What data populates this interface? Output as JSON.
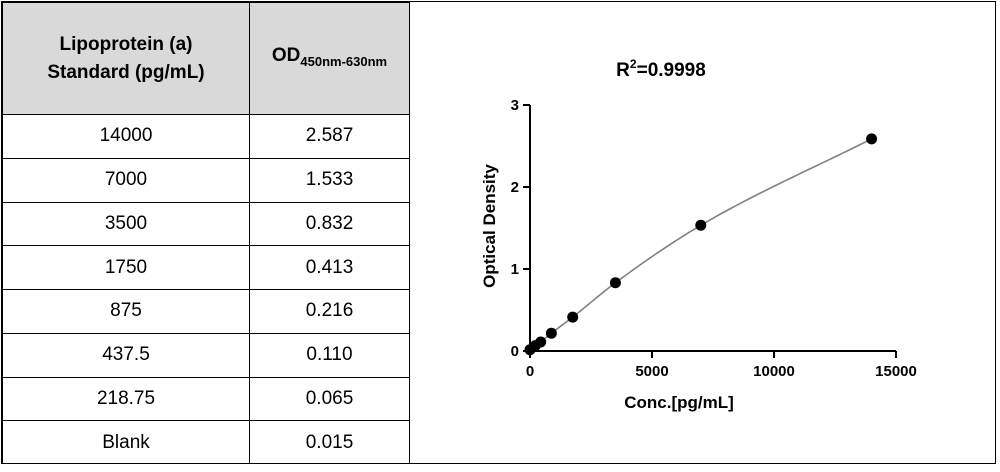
{
  "table": {
    "header_concentration_line1": "Lipoprotein (a)",
    "header_concentration_line2": "Standard (pg/mL)",
    "header_od_main": "OD",
    "header_od_sub": "450nm-630nm",
    "rows": [
      {
        "conc": "14000",
        "od": "2.587"
      },
      {
        "conc": "7000",
        "od": "1.533"
      },
      {
        "conc": "3500",
        "od": "0.832"
      },
      {
        "conc": "1750",
        "od": "0.413"
      },
      {
        "conc": "875",
        "od": "0.216"
      },
      {
        "conc": "437.5",
        "od": "0.110"
      },
      {
        "conc": "218.75",
        "od": "0.065"
      },
      {
        "conc": "Blank",
        "od": "0.015"
      }
    ]
  },
  "chart_data": {
    "type": "scatter",
    "title_prefix": "R",
    "title_sup": "2",
    "title_suffix": "=0.9998",
    "xlabel": "Conc.[pg/mL]",
    "ylabel": "Optical Density",
    "xlim": [
      0,
      15000
    ],
    "ylim": [
      0,
      3
    ],
    "xticks": [
      "0",
      "5000",
      "10000",
      "15000"
    ],
    "yticks": [
      "0",
      "1",
      "2",
      "3"
    ],
    "grid": false,
    "fit_line": true,
    "series": [
      {
        "x": [
          0,
          218.75,
          437.5,
          875,
          1750,
          3500,
          7000,
          14000
        ],
        "y": [
          0.015,
          0.065,
          0.11,
          0.216,
          0.413,
          0.832,
          1.533,
          2.587
        ]
      }
    ],
    "colors": {
      "points": "#000000",
      "fit_line": "#808080",
      "axis": "#000000"
    }
  }
}
